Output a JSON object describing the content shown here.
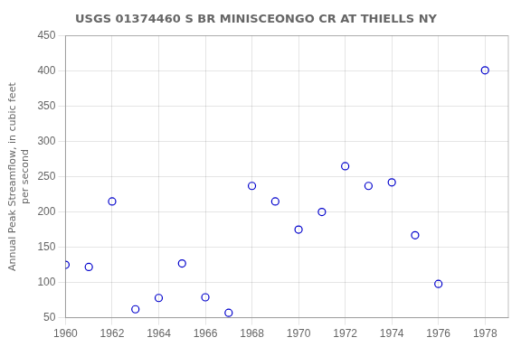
{
  "chart_data": {
    "type": "scatter",
    "title": "USGS 01374460 S BR MINISCEONGO CR AT THIELLS NY",
    "ylabel": "Annual Peak Streamflow, in cubic feet\nper second",
    "x": [
      1960,
      1961,
      1962,
      1963,
      1964,
      1965,
      1966,
      1967,
      1968,
      1969,
      1970,
      1971,
      1972,
      1973,
      1974,
      1975,
      1976,
      1978
    ],
    "values": [
      125,
      122,
      215,
      62,
      78,
      127,
      79,
      57,
      237,
      215,
      175,
      200,
      265,
      237,
      242,
      167,
      98,
      401
    ],
    "color": "#0000cc",
    "marker": "circle",
    "xlim": [
      1960,
      1979
    ],
    "ylim": [
      50,
      450
    ],
    "xticks": [
      1960,
      1962,
      1964,
      1966,
      1968,
      1970,
      1972,
      1974,
      1976,
      1978
    ],
    "yticks": [
      50,
      100,
      150,
      200,
      250,
      300,
      350,
      400,
      450
    ],
    "grid": true
  }
}
